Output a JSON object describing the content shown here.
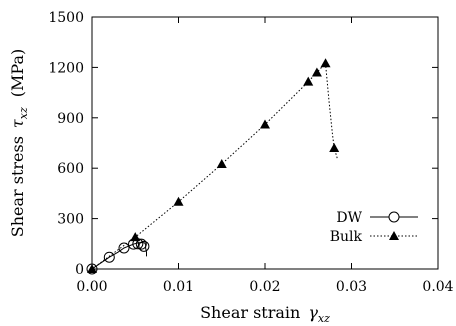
{
  "chart_data": {
    "type": "scatter",
    "xlabel": "Shear strain",
    "xlabel_symbol": "γ",
    "xlabel_subscript": "xz",
    "ylabel": "Shear stress",
    "ylabel_symbol": "τ",
    "ylabel_subscript": "xz",
    "ylabel_unit": "(MPa)",
    "xlim": [
      0.0,
      0.04
    ],
    "ylim": [
      0,
      1500
    ],
    "xticks": [
      "0.00",
      "0.01",
      "0.02",
      "0.03",
      "0.04"
    ],
    "xtick_values": [
      0.0,
      0.01,
      0.02,
      0.03,
      0.04
    ],
    "yticks": [
      "0",
      "300",
      "600",
      "900",
      "1200",
      "1500"
    ],
    "ytick_values": [
      0,
      300,
      600,
      900,
      1200,
      1500
    ],
    "grid": false,
    "legend_position": "lower-right",
    "series": [
      {
        "name": "DW",
        "marker": "open-circle",
        "line_style": "solid",
        "points": [
          [
            0.0,
            0
          ],
          [
            0.002,
            70
          ],
          [
            0.0037,
            125
          ],
          [
            0.0048,
            148
          ],
          [
            0.0053,
            150
          ],
          [
            0.0057,
            148
          ],
          [
            0.006,
            135
          ]
        ],
        "tail": [
          [
            0.0,
            0
          ],
          [
            0.001,
            35
          ],
          [
            0.002,
            70
          ],
          [
            0.003,
            100
          ],
          [
            0.0037,
            125
          ],
          [
            0.0044,
            140
          ],
          [
            0.0049,
            150
          ],
          [
            0.0054,
            156
          ],
          [
            0.0058,
            158
          ],
          [
            0.0061,
            155
          ],
          [
            0.0062,
            145
          ],
          [
            0.0062,
            125
          ],
          [
            0.0063,
            100
          ],
          [
            0.0063,
            75
          ]
        ]
      },
      {
        "name": "Bulk",
        "marker": "filled-triangle",
        "line_style": "dotted",
        "points": [
          [
            0.0,
            0
          ],
          [
            0.005,
            190
          ],
          [
            0.01,
            400
          ],
          [
            0.015,
            625
          ],
          [
            0.02,
            860
          ],
          [
            0.025,
            1115
          ],
          [
            0.026,
            1170
          ],
          [
            0.027,
            1225
          ],
          [
            0.028,
            720
          ]
        ],
        "tail": [
          [
            0.0,
            0
          ],
          [
            0.005,
            190
          ],
          [
            0.01,
            400
          ],
          [
            0.015,
            625
          ],
          [
            0.02,
            860
          ],
          [
            0.025,
            1115
          ],
          [
            0.026,
            1170
          ],
          [
            0.027,
            1225
          ],
          [
            0.0274,
            1000
          ],
          [
            0.0278,
            800
          ],
          [
            0.028,
            720
          ],
          [
            0.0284,
            650
          ]
        ]
      }
    ]
  }
}
